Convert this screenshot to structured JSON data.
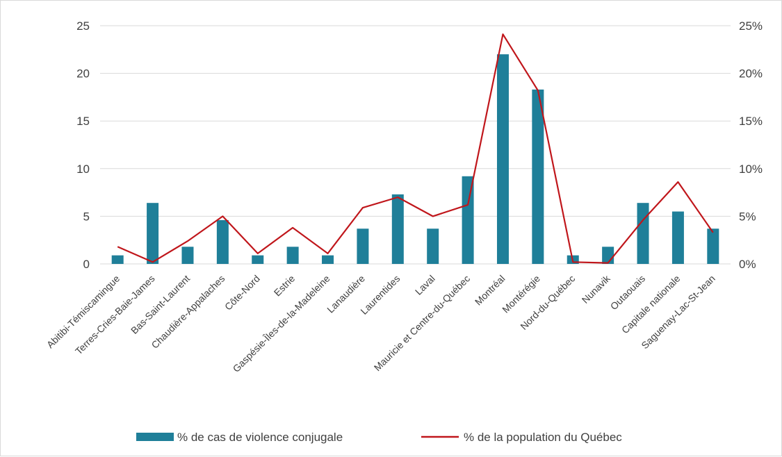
{
  "chart_data": {
    "type": "bar",
    "title": "",
    "xlabel": "",
    "ylabel": "",
    "colors": {
      "bar": "#1f7f99",
      "line": "#c0161b",
      "grid": "#d9d9d9",
      "text": "#404040"
    },
    "categories": [
      "Abitibi-Témiscamingue",
      "Terres-Cries-Baie-James",
      "Bas-Saint-Laurent",
      "Chaudière-Appalaches",
      "Côte-Nord",
      "Estrie",
      "Gaspésie-Îles-de-la-Madeleine",
      "Lanaudière",
      "Laurentides",
      "Laval",
      "Mauricie et Centre-du-Québec",
      "Montréal",
      "Montérégie",
      "Nord-du-Québec",
      "Nunavik",
      "Outaouais",
      "Capitale nationale",
      "Saguenay-Lac-St-Jean"
    ],
    "series": [
      {
        "name": "% de cas de violence conjugale",
        "type": "bar",
        "axis": "left",
        "values": [
          0.9,
          6.4,
          1.8,
          4.6,
          0.9,
          1.8,
          0.9,
          3.7,
          7.3,
          3.7,
          9.2,
          22.0,
          18.3,
          0.9,
          1.8,
          6.4,
          5.5,
          3.7
        ]
      },
      {
        "name": "% de la population du Québec",
        "type": "line",
        "axis": "right",
        "values": [
          1.8,
          0.2,
          2.4,
          5.0,
          1.1,
          3.8,
          1.1,
          5.9,
          7.0,
          5.0,
          6.2,
          24.1,
          18.2,
          0.2,
          0.1,
          4.6,
          8.6,
          3.3
        ]
      }
    ],
    "y_left": {
      "ylim": [
        0,
        25
      ],
      "ticks": [
        "0",
        "5",
        "10",
        "15",
        "20",
        "25"
      ]
    },
    "y_right": {
      "ylim": [
        0,
        25
      ],
      "ticks": [
        "0%",
        "5%",
        "10%",
        "15%",
        "20%",
        "25%"
      ]
    },
    "grid": true,
    "legend_position": "bottom"
  }
}
